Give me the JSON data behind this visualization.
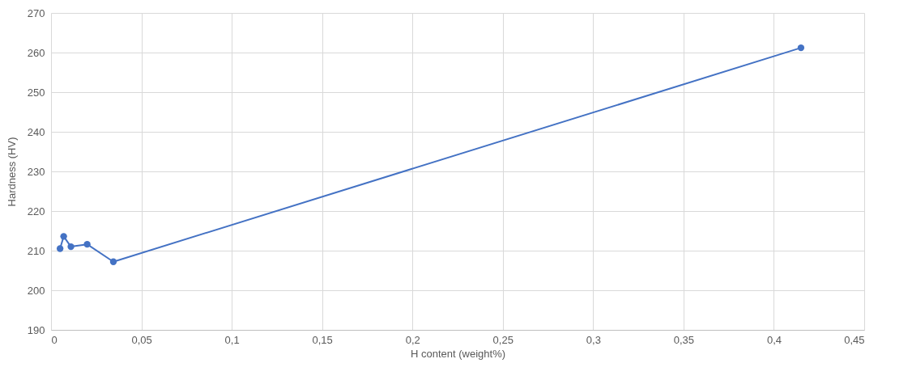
{
  "chart_data": {
    "type": "line",
    "xlabel": "H content (weight%)",
    "ylabel": "Hardness (HV)",
    "x": [
      0.005,
      0.007,
      0.011,
      0.02,
      0.0345,
      0.415
    ],
    "series": [
      {
        "color": "#4472c4",
        "values": [
          210.5,
          213.6,
          211,
          211.6,
          207.2,
          261.2
        ]
      }
    ],
    "xlim": [
      0,
      0.45
    ],
    "xticks": [
      0,
      {
        "value": 0.05,
        "label": "0,05"
      },
      {
        "value": 0.1,
        "label": "0,1"
      },
      {
        "value": 0.15,
        "label": "0,15"
      },
      {
        "value": 0.2,
        "label": "0,2"
      },
      {
        "value": 0.25,
        "label": "0,25"
      },
      {
        "value": 0.3,
        "label": "0,3"
      },
      {
        "value": 0.35,
        "label": "0,35"
      },
      {
        "value": 0.4,
        "label": "0,4"
      },
      {
        "value": 0.45,
        "label": "0,45"
      }
    ],
    "ylim": [
      190,
      270
    ],
    "yticks": [
      190,
      200,
      210,
      220,
      230,
      240,
      250,
      260,
      270
    ],
    "grid": true,
    "marker": "circle",
    "line_style": "solid"
  }
}
